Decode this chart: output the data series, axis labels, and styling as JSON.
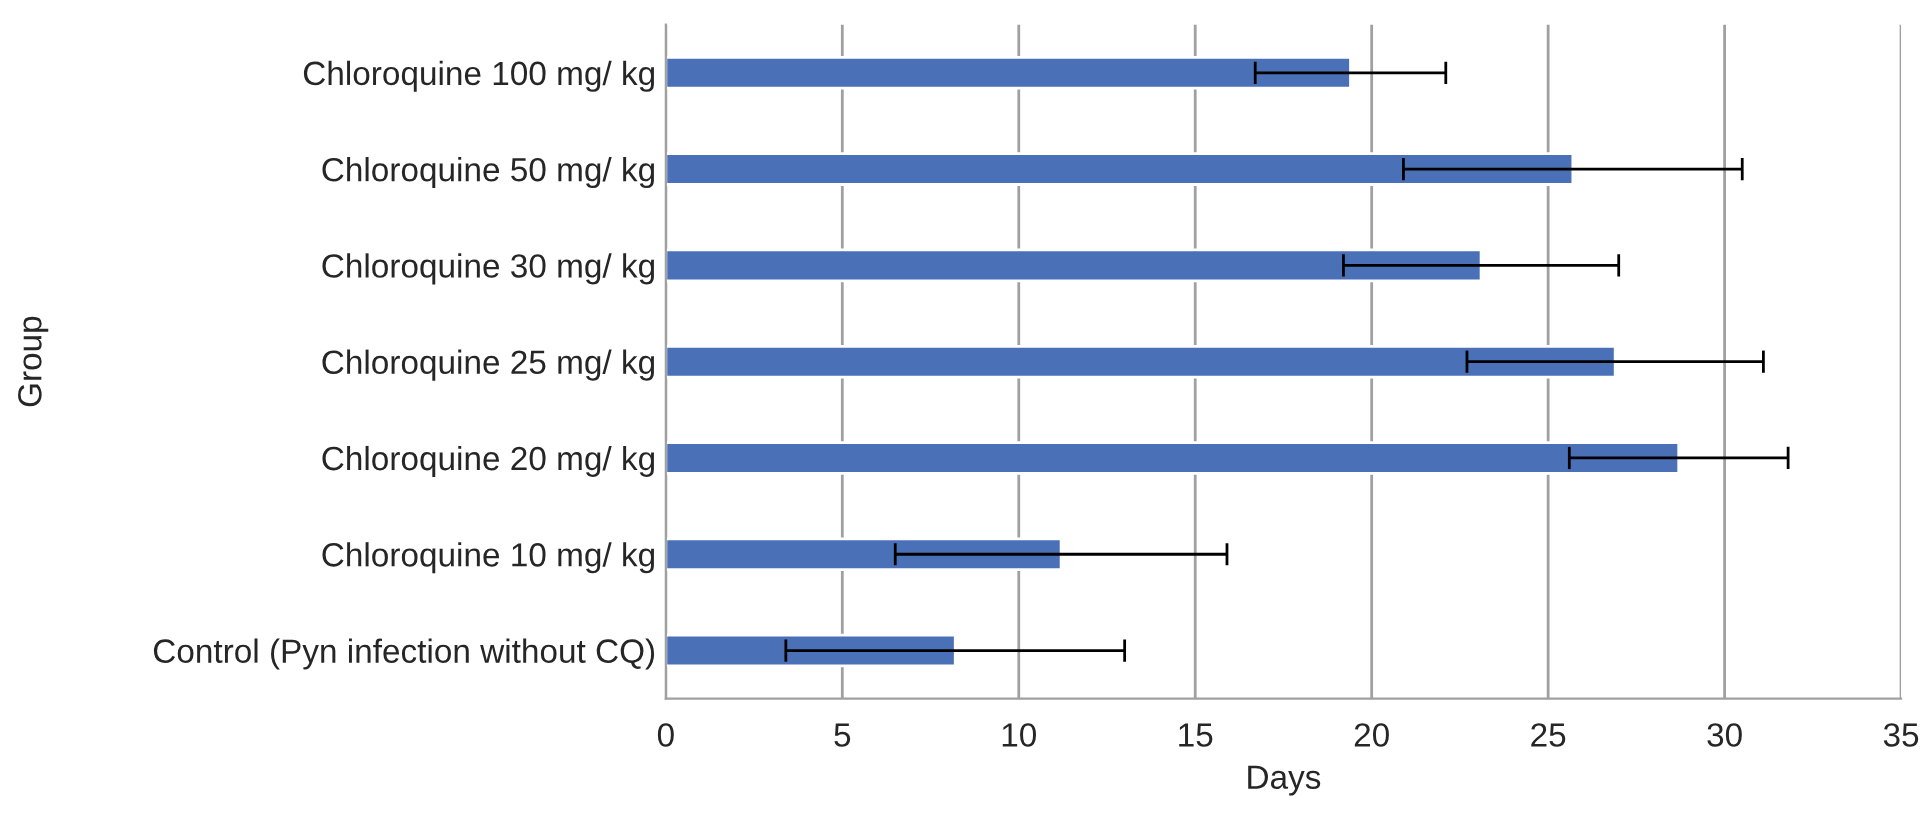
{
  "chart_data": {
    "type": "bar",
    "orientation": "horizontal",
    "xlabel": "Days",
    "ylabel": "Group",
    "categories": [
      "Chloroquine 100 mg/ kg",
      "Chloroquine 50 mg/ kg",
      "Chloroquine 30 mg/ kg",
      "Chloroquine 25 mg/ kg",
      "Chloroquine 20 mg/ kg",
      "Chloroquine 10 mg/ kg",
      "Control (Pyn infection without CQ)"
    ],
    "values": [
      19.4,
      25.7,
      23.1,
      26.9,
      28.7,
      11.2,
      8.2
    ],
    "errors": [
      2.7,
      4.8,
      3.9,
      4.2,
      3.1,
      4.7,
      4.8
    ],
    "color": "#4a70b8",
    "xlim": [
      0,
      35
    ],
    "xticks": [
      0,
      5,
      10,
      15,
      20,
      25,
      30,
      35
    ],
    "grid": "x"
  }
}
